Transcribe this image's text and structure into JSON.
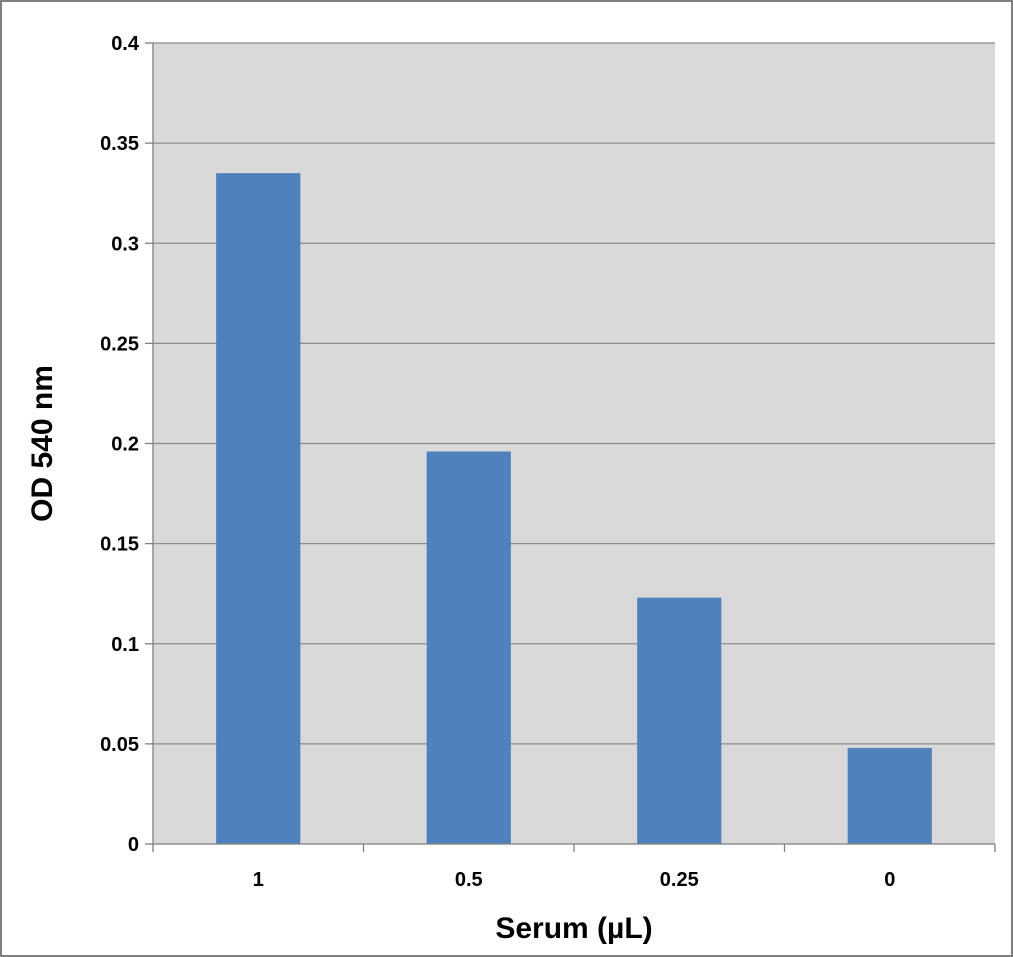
{
  "chart_data": {
    "type": "bar",
    "title": "",
    "xlabel": "Serum (µL)",
    "ylabel": "OD 540 nm",
    "categories": [
      "1",
      "0.5",
      "0.25",
      "0"
    ],
    "values": [
      0.335,
      0.196,
      0.123,
      0.048
    ],
    "ylim": [
      0,
      0.4
    ],
    "yticks": [
      "0",
      "0.05",
      "0.1",
      "0.15",
      "0.2",
      "0.25",
      "0.3",
      "0.35",
      "0.4"
    ],
    "grid": true,
    "legend": "none"
  },
  "colors": {
    "bar": "#4f81bd",
    "plot_background": "#d9d9d9",
    "gridline": "#8c8c8c",
    "frame": "#7f7f7f"
  }
}
